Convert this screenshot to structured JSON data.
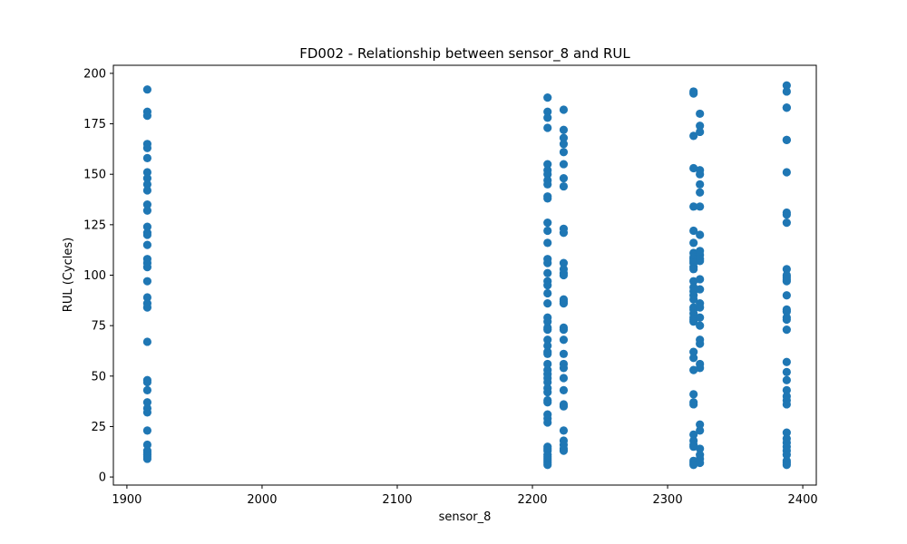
{
  "chart_data": {
    "type": "scatter",
    "title": "FD002 - Relationship between sensor_8 and RUL",
    "xlabel": "sensor_8",
    "ylabel": "RUL (Cycles)",
    "xlim": [
      1890,
      2410
    ],
    "ylim": [
      -4,
      204
    ],
    "xticks": [
      1900,
      2000,
      2100,
      2200,
      2300,
      2400
    ],
    "yticks": [
      0,
      25,
      50,
      75,
      100,
      125,
      150,
      175,
      200
    ],
    "marker_color": "#1f77b4",
    "grid": false,
    "legend": "none",
    "series": [
      {
        "points": [
          [
            1915.1,
            192
          ],
          [
            1915.1,
            181
          ],
          [
            1915.1,
            179
          ],
          [
            1915.1,
            165
          ],
          [
            1915.1,
            163
          ],
          [
            1915.1,
            158
          ],
          [
            1915.1,
            151
          ],
          [
            1915.1,
            148
          ],
          [
            1915.1,
            145
          ],
          [
            1915.1,
            142
          ],
          [
            1915.1,
            135
          ],
          [
            1915.1,
            132
          ],
          [
            1915.1,
            124
          ],
          [
            1915.1,
            121
          ],
          [
            1915.1,
            120
          ],
          [
            1915.1,
            115
          ],
          [
            1915.1,
            108
          ],
          [
            1915.1,
            106
          ],
          [
            1915.1,
            104
          ],
          [
            1915.1,
            97
          ],
          [
            1915.1,
            89
          ],
          [
            1915.1,
            86
          ],
          [
            1915.1,
            84
          ],
          [
            1915.1,
            67
          ],
          [
            1915.1,
            48
          ],
          [
            1915.1,
            47
          ],
          [
            1915.1,
            43
          ],
          [
            1915.1,
            37
          ],
          [
            1915.1,
            34
          ],
          [
            1915.1,
            32
          ],
          [
            1915.1,
            23
          ],
          [
            1915.1,
            16
          ],
          [
            1915.1,
            13
          ],
          [
            1915.1,
            12
          ],
          [
            1915.1,
            11
          ],
          [
            1915.1,
            10
          ],
          [
            1915.1,
            9
          ],
          [
            2211.2,
            188
          ],
          [
            2211.2,
            181
          ],
          [
            2211.2,
            178
          ],
          [
            2211.2,
            173
          ],
          [
            2211.2,
            155
          ],
          [
            2211.2,
            152
          ],
          [
            2211.2,
            150
          ],
          [
            2211.2,
            147
          ],
          [
            2211.2,
            145
          ],
          [
            2211.2,
            139
          ],
          [
            2211.2,
            138
          ],
          [
            2211.2,
            126
          ],
          [
            2211.2,
            122
          ],
          [
            2211.2,
            116
          ],
          [
            2211.2,
            108
          ],
          [
            2211.2,
            106
          ],
          [
            2211.2,
            101
          ],
          [
            2211.2,
            97
          ],
          [
            2211.2,
            95
          ],
          [
            2211.2,
            91
          ],
          [
            2211.2,
            86
          ],
          [
            2211.2,
            79
          ],
          [
            2211.2,
            77
          ],
          [
            2211.2,
            74
          ],
          [
            2211.2,
            73
          ],
          [
            2211.2,
            68
          ],
          [
            2211.2,
            65
          ],
          [
            2211.2,
            62
          ],
          [
            2211.2,
            61
          ],
          [
            2211.2,
            56
          ],
          [
            2211.2,
            53
          ],
          [
            2211.2,
            51
          ],
          [
            2211.2,
            49
          ],
          [
            2211.2,
            47
          ],
          [
            2211.2,
            44
          ],
          [
            2211.2,
            42
          ],
          [
            2211.2,
            38
          ],
          [
            2211.2,
            37
          ],
          [
            2211.2,
            31
          ],
          [
            2211.2,
            29
          ],
          [
            2211.2,
            27
          ],
          [
            2211.2,
            15
          ],
          [
            2211.2,
            14
          ],
          [
            2211.2,
            13
          ],
          [
            2211.2,
            11
          ],
          [
            2211.2,
            10
          ],
          [
            2211.2,
            9
          ],
          [
            2211.2,
            8
          ],
          [
            2211.2,
            7
          ],
          [
            2211.2,
            6
          ],
          [
            2223.1,
            182
          ],
          [
            2223.1,
            172
          ],
          [
            2223.1,
            168
          ],
          [
            2223.1,
            165
          ],
          [
            2223.1,
            161
          ],
          [
            2223.1,
            155
          ],
          [
            2223.1,
            148
          ],
          [
            2223.1,
            144
          ],
          [
            2223.1,
            123
          ],
          [
            2223.1,
            121
          ],
          [
            2223.1,
            106
          ],
          [
            2223.1,
            103
          ],
          [
            2223.1,
            101
          ],
          [
            2223.1,
            100
          ],
          [
            2223.1,
            88
          ],
          [
            2223.1,
            87
          ],
          [
            2223.1,
            86
          ],
          [
            2223.1,
            74
          ],
          [
            2223.1,
            73
          ],
          [
            2223.1,
            68
          ],
          [
            2223.1,
            61
          ],
          [
            2223.1,
            56
          ],
          [
            2223.1,
            54
          ],
          [
            2223.1,
            49
          ],
          [
            2223.1,
            43
          ],
          [
            2223.1,
            36
          ],
          [
            2223.1,
            35
          ],
          [
            2223.1,
            23
          ],
          [
            2223.1,
            18
          ],
          [
            2223.1,
            16
          ],
          [
            2223.1,
            14
          ],
          [
            2223.1,
            13
          ],
          [
            2319.2,
            191
          ],
          [
            2319.2,
            190
          ],
          [
            2319.2,
            169
          ],
          [
            2319.2,
            153
          ],
          [
            2319.2,
            134
          ],
          [
            2319.2,
            122
          ],
          [
            2319.2,
            116
          ],
          [
            2319.2,
            111
          ],
          [
            2319.2,
            109
          ],
          [
            2319.2,
            108
          ],
          [
            2319.2,
            107
          ],
          [
            2319.2,
            106
          ],
          [
            2319.2,
            104
          ],
          [
            2319.2,
            103
          ],
          [
            2319.2,
            97
          ],
          [
            2319.2,
            94
          ],
          [
            2319.2,
            92
          ],
          [
            2319.2,
            90
          ],
          [
            2319.2,
            88
          ],
          [
            2319.2,
            84
          ],
          [
            2319.2,
            83
          ],
          [
            2319.2,
            81
          ],
          [
            2319.2,
            79
          ],
          [
            2319.2,
            78
          ],
          [
            2319.2,
            77
          ],
          [
            2319.2,
            62
          ],
          [
            2319.2,
            59
          ],
          [
            2319.2,
            53
          ],
          [
            2319.2,
            41
          ],
          [
            2319.2,
            37
          ],
          [
            2319.2,
            36
          ],
          [
            2319.2,
            21
          ],
          [
            2319.2,
            18
          ],
          [
            2319.2,
            16
          ],
          [
            2319.2,
            15
          ],
          [
            2319.2,
            8
          ],
          [
            2319.2,
            7
          ],
          [
            2319.2,
            6
          ],
          [
            2323.9,
            180
          ],
          [
            2323.9,
            174
          ],
          [
            2323.9,
            171
          ],
          [
            2323.9,
            152
          ],
          [
            2323.9,
            150
          ],
          [
            2323.9,
            145
          ],
          [
            2323.9,
            141
          ],
          [
            2323.9,
            134
          ],
          [
            2323.9,
            120
          ],
          [
            2323.9,
            112
          ],
          [
            2323.9,
            110
          ],
          [
            2323.9,
            108
          ],
          [
            2323.9,
            107
          ],
          [
            2323.9,
            98
          ],
          [
            2323.9,
            93
          ],
          [
            2323.9,
            86
          ],
          [
            2323.9,
            84
          ],
          [
            2323.9,
            79
          ],
          [
            2323.9,
            75
          ],
          [
            2323.9,
            68
          ],
          [
            2323.9,
            66
          ],
          [
            2323.9,
            56
          ],
          [
            2323.9,
            54
          ],
          [
            2323.9,
            26
          ],
          [
            2323.9,
            23
          ],
          [
            2323.9,
            14
          ],
          [
            2323.9,
            11
          ],
          [
            2323.9,
            9
          ],
          [
            2323.9,
            7
          ],
          [
            2388.1,
            194
          ],
          [
            2388.1,
            191
          ],
          [
            2388.1,
            183
          ],
          [
            2388.1,
            183
          ],
          [
            2388.1,
            167
          ],
          [
            2388.1,
            167
          ],
          [
            2388.1,
            151
          ],
          [
            2388.1,
            131
          ],
          [
            2388.1,
            130
          ],
          [
            2388.1,
            126
          ],
          [
            2388.1,
            103
          ],
          [
            2388.1,
            100
          ],
          [
            2388.1,
            99
          ],
          [
            2388.1,
            98
          ],
          [
            2388.1,
            97
          ],
          [
            2388.1,
            90
          ],
          [
            2388.1,
            83
          ],
          [
            2388.1,
            82
          ],
          [
            2388.1,
            79
          ],
          [
            2388.1,
            78
          ],
          [
            2388.1,
            73
          ],
          [
            2388.1,
            57
          ],
          [
            2388.1,
            52
          ],
          [
            2388.1,
            48
          ],
          [
            2388.1,
            43
          ],
          [
            2388.1,
            40
          ],
          [
            2388.1,
            38
          ],
          [
            2388.1,
            36
          ],
          [
            2388.1,
            22
          ],
          [
            2388.1,
            19
          ],
          [
            2388.1,
            17
          ],
          [
            2388.1,
            15
          ],
          [
            2388.1,
            13
          ],
          [
            2388.1,
            11
          ],
          [
            2388.1,
            8
          ],
          [
            2388.1,
            7
          ],
          [
            2388.1,
            6
          ]
        ]
      }
    ]
  }
}
